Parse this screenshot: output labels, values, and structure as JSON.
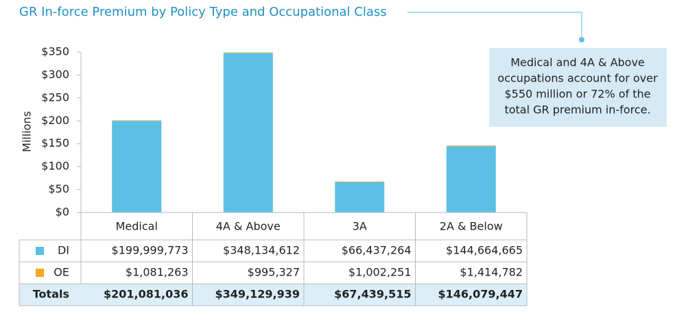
{
  "chart_data": {
    "type": "bar",
    "stacked": true,
    "title": "GR In-force Premium by Policy Type and Occupational Class",
    "y_label": "Millions",
    "categories": [
      "Medical",
      "4A & Above",
      "3A",
      "2A & Below"
    ],
    "series": [
      {
        "name": "DI",
        "color": "#5bc0e3",
        "values": [
          199.999773,
          348.134612,
          66.437264,
          144.664665
        ],
        "value_labels": [
          "$199,999,773",
          "$348,134,612",
          "$66,437,264",
          "$144,664,665"
        ]
      },
      {
        "name": "OE",
        "color": "#f5a623",
        "values": [
          1.081263,
          0.995327,
          1.002251,
          1.414782
        ],
        "value_labels": [
          "$1,081,263",
          "$995,327",
          "$1,002,251",
          "$1,414,782"
        ]
      }
    ],
    "totals": {
      "label": "Totals",
      "values": [
        "$201,081,036",
        "$349,129,939",
        "$67,439,515",
        "$146,079,447"
      ]
    },
    "ylim": [
      0,
      350
    ],
    "yticks": [
      {
        "value": 0,
        "label": "$0"
      },
      {
        "value": 50,
        "label": "$50"
      },
      {
        "value": 100,
        "label": "$100"
      },
      {
        "value": 150,
        "label": "$150"
      },
      {
        "value": 200,
        "label": "$200"
      },
      {
        "value": 250,
        "label": "$250"
      },
      {
        "value": 300,
        "label": "$300"
      },
      {
        "value": 350,
        "label": "$350"
      }
    ],
    "annotation": [
      "Medical and 4A & Above",
      "occupations account for over",
      "$550 million or 72% of the",
      "total GR premium in-force."
    ]
  }
}
